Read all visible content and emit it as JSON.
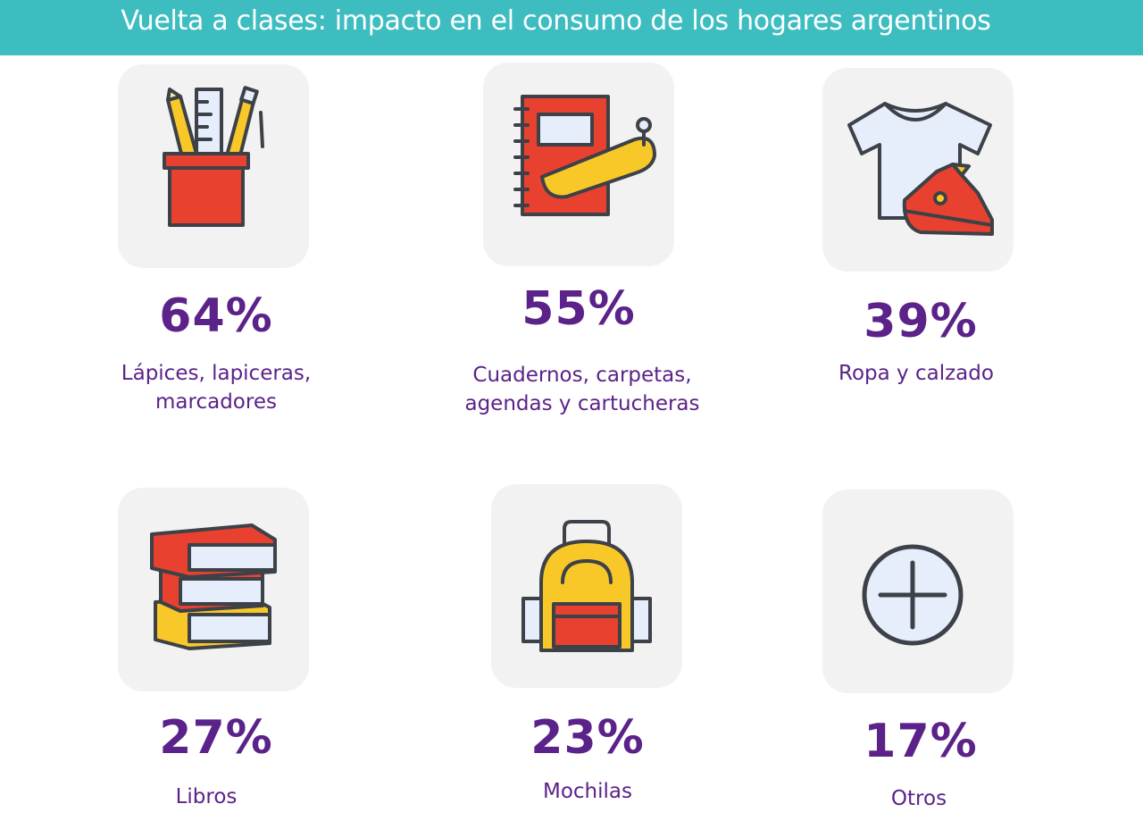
{
  "header": {
    "title": "Vuelta a clases: impacto en el consumo de los hogares argentinos",
    "background": "#3ebdc1"
  },
  "colors": {
    "value_text": "#5b2289",
    "tile_background": "#f2f2f2",
    "icon_red": "#e8412f",
    "icon_yellow": "#f8c829",
    "icon_outline": "#3d4148",
    "icon_light": "#e6eefc"
  },
  "chart_data": {
    "type": "table",
    "title": "Vuelta a clases: impacto en el consumo de los hogares argentinos",
    "unit": "%",
    "items": [
      {
        "label": "Lápices, lapiceras, marcadores",
        "label_lines": [
          "Lápices, lapiceras,",
          "marcadores"
        ],
        "value": 64,
        "display": "64%",
        "icon": "pencil-cup-icon"
      },
      {
        "label": "Cuadernos, carpetas, agendas y cartucheras",
        "label_lines": [
          "Cuadernos, carpetas,",
          "agendas y cartucheras"
        ],
        "value": 55,
        "display": "55%",
        "icon": "notebook-pencil-case-icon"
      },
      {
        "label": "Ropa y calzado",
        "label_lines": [
          "Ropa y calzado"
        ],
        "value": 39,
        "display": "39%",
        "icon": "tshirt-sneaker-icon"
      },
      {
        "label": "Libros",
        "label_lines": [
          "Libros"
        ],
        "value": 27,
        "display": "27%",
        "icon": "books-stack-icon"
      },
      {
        "label": "Mochilas",
        "label_lines": [
          "Mochilas"
        ],
        "value": 23,
        "display": "23%",
        "icon": "backpack-icon"
      },
      {
        "label": "Otros",
        "label_lines": [
          "Otros"
        ],
        "value": 17,
        "display": "17%",
        "icon": "plus-circle-icon"
      }
    ]
  }
}
